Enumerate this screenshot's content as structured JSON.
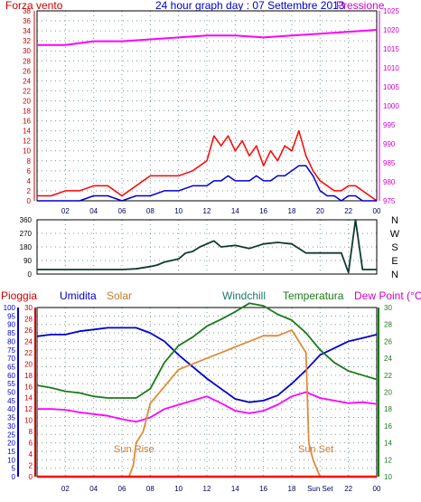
{
  "header": {
    "left_label": "Forza vento",
    "title": "24 hour graph day : 07 Settembre 2013",
    "right_label": "Pressione"
  },
  "bottom_header": {
    "pioggia": "Pioggia",
    "umidita": "Umidita",
    "solar": "Solar",
    "windchill": "Windchill",
    "temperatura": "Temperatura",
    "dewpoint": "Dew Point (°C)"
  },
  "annotations": {
    "sunrise": "Sun Rise",
    "sunset": "Sun Set"
  },
  "colors": {
    "wind_gust": "#ff0000",
    "wind_avg": "#0000cc",
    "pressure": "#ff00ff",
    "direction": "#0f3a30",
    "humidity": "#0000cc",
    "solar": "#e08a3a",
    "temperature": "#1a7a1a",
    "dewpoint": "#ff00ff",
    "rain": "#ff0000",
    "axis_left": "#cc0000",
    "axis_right": "#cc00cc",
    "axis_blue": "#0000cc",
    "axis_green": "#1a7a1a",
    "grid": "#7a9a9a"
  },
  "chart_data": [
    {
      "type": "line",
      "name": "wind-pressure",
      "x_ticks": [
        "02",
        "04",
        "06",
        "08",
        "10",
        "12",
        "14",
        "16",
        "18",
        "20",
        "22",
        "00"
      ],
      "y_left_ticks": [
        "0",
        "2",
        "4",
        "6",
        "8",
        "10",
        "12",
        "14",
        "16",
        "18",
        "20",
        "22",
        "24",
        "26",
        "28",
        "30",
        "32",
        "34",
        "36",
        "38"
      ],
      "y_left_range": [
        0,
        38
      ],
      "y_right_ticks": [
        "975",
        "980",
        "985",
        "990",
        "995",
        "1000",
        "1005",
        "1010",
        "1015",
        "1020",
        "1025"
      ],
      "y_right_range": [
        975,
        1025
      ],
      "x_range": [
        0,
        24
      ],
      "grid": true,
      "series": [
        {
          "key": "gust",
          "color": "#ff0000",
          "x": [
            0,
            1,
            2,
            3,
            4,
            5,
            6,
            7,
            8,
            9,
            10,
            11,
            12,
            12.5,
            13,
            13.5,
            14,
            14.5,
            15,
            15.5,
            16,
            16.5,
            17,
            17.5,
            18,
            18.5,
            19,
            19.5,
            20,
            20.5,
            21,
            21.5,
            22,
            22.5,
            23,
            23.5,
            24
          ],
          "values": [
            1,
            1,
            2,
            2,
            3,
            3,
            1,
            3,
            5,
            5,
            5,
            6,
            8,
            13,
            11,
            13,
            10,
            12,
            9,
            11,
            7,
            10,
            8,
            11,
            10,
            14,
            9,
            6,
            4,
            3,
            2,
            2,
            3,
            3,
            2,
            1,
            0
          ]
        },
        {
          "key": "avg",
          "color": "#0000cc",
          "x": [
            0,
            1,
            2,
            3,
            4,
            5,
            6,
            7,
            8,
            9,
            10,
            11,
            12,
            12.5,
            13,
            13.5,
            14,
            14.5,
            15,
            15.5,
            16,
            16.5,
            17,
            17.5,
            18,
            18.5,
            19,
            19.5,
            20,
            20.5,
            21,
            21.5,
            22,
            22.5,
            23,
            23.5,
            24
          ],
          "values": [
            0,
            0,
            0,
            0,
            1,
            1,
            0,
            1,
            1,
            2,
            2,
            3,
            3,
            4,
            4,
            5,
            4,
            4,
            4,
            5,
            4,
            4,
            5,
            5,
            6,
            7,
            7,
            5,
            2,
            1,
            1,
            0,
            1,
            1,
            0,
            0,
            0
          ]
        },
        {
          "key": "pressure",
          "color": "#ff00ff",
          "axis": "right",
          "x": [
            0,
            2,
            4,
            6,
            8,
            10,
            12,
            14,
            16,
            18,
            20,
            22,
            24
          ],
          "values": [
            1016,
            1016,
            1017,
            1017,
            1017.5,
            1018,
            1018.5,
            1018.5,
            1018,
            1018.5,
            1019,
            1019.5,
            1020
          ]
        }
      ]
    },
    {
      "type": "line",
      "name": "wind-direction",
      "y_ticks": [
        "0",
        "90",
        "180",
        "270",
        "360"
      ],
      "y_range": [
        0,
        360
      ],
      "compass_labels": [
        "N",
        "W",
        "S",
        "E",
        "N"
      ],
      "x_range": [
        0,
        24
      ],
      "series": [
        {
          "key": "direction",
          "color": "#0f3a30",
          "x": [
            0,
            3,
            6,
            7,
            8,
            8.5,
            9,
            10,
            10.5,
            11,
            11.5,
            12,
            12.5,
            13,
            14,
            15,
            16,
            17,
            18,
            19,
            20,
            21,
            21.5,
            22,
            22.5,
            23,
            24
          ],
          "values": [
            30,
            30,
            30,
            35,
            50,
            60,
            80,
            100,
            140,
            150,
            180,
            200,
            220,
            180,
            190,
            170,
            200,
            210,
            200,
            140,
            140,
            140,
            140,
            10,
            360,
            30,
            30
          ]
        }
      ]
    },
    {
      "type": "line",
      "name": "humidity-temperature",
      "x_ticks": [
        "02",
        "04",
        "06",
        "08",
        "10",
        "12",
        "14",
        "16",
        "18",
        "Sun Set",
        "22",
        "00"
      ],
      "y_blue_ticks": [
        "0",
        "5",
        "10",
        "15",
        "20",
        "25",
        "30",
        "35",
        "40",
        "45",
        "50",
        "55",
        "60",
        "65",
        "70",
        "75",
        "80",
        "85",
        "90",
        "95",
        "100"
      ],
      "y_blue_range": [
        0,
        100
      ],
      "y_red_ticks": [
        "0",
        "2",
        "4",
        "6",
        "8",
        "10",
        "12",
        "14",
        "16",
        "18",
        "20",
        "22",
        "24",
        "26",
        "28",
        "30"
      ],
      "y_red_range": [
        0,
        30
      ],
      "y_right_ticks": [
        "10",
        "12",
        "14",
        "16",
        "18",
        "20",
        "22",
        "24",
        "26",
        "28",
        "30"
      ],
      "y_right_range": [
        10,
        30
      ],
      "x_range": [
        0,
        24
      ],
      "grid": true,
      "series": [
        {
          "key": "humidity",
          "color": "#0000cc",
          "axis": "blue",
          "x": [
            0,
            1,
            2,
            3,
            4,
            5,
            6,
            7,
            8,
            9,
            10,
            11,
            12,
            13,
            14,
            15,
            16,
            17,
            18,
            19,
            20,
            21,
            22,
            23,
            24
          ],
          "values": [
            83,
            84,
            84,
            86,
            87,
            88,
            88,
            88,
            85,
            80,
            72,
            65,
            58,
            52,
            46,
            44,
            45,
            48,
            55,
            63,
            72,
            76,
            80,
            82,
            84
          ]
        },
        {
          "key": "temperature",
          "color": "#1a7a1a",
          "axis": "right",
          "x": [
            0,
            1,
            2,
            3,
            4,
            5,
            6,
            7,
            8,
            9,
            10,
            11,
            12,
            13,
            14,
            15,
            16,
            17,
            18,
            19,
            20,
            21,
            22,
            23,
            24
          ],
          "values": [
            20.8,
            20.5,
            20.1,
            19.9,
            19.5,
            19.3,
            19.3,
            19.3,
            20.4,
            23.5,
            25.5,
            26.5,
            27.8,
            28.6,
            29.5,
            30.5,
            30.2,
            29.2,
            28.5,
            27,
            25,
            23.5,
            22.5,
            22,
            21.5
          ]
        },
        {
          "key": "dewpoint",
          "color": "#ff00ff",
          "axis": "right",
          "x": [
            0,
            1,
            2,
            3,
            4,
            5,
            6,
            7,
            8,
            9,
            10,
            11,
            12,
            13,
            14,
            15,
            16,
            17,
            18,
            19,
            20,
            21,
            22,
            23,
            24
          ],
          "values": [
            18,
            18,
            17.9,
            17.6,
            17.4,
            17.2,
            16.8,
            16.5,
            17,
            18,
            18.5,
            19,
            19.5,
            18.7,
            17.8,
            17.5,
            17.8,
            18.5,
            19.5,
            20,
            19.3,
            19,
            18.7,
            18.8,
            18.6
          ]
        },
        {
          "key": "solar",
          "color": "#e08a3a",
          "axis": "red",
          "x": [
            0,
            6.5,
            6.8,
            7,
            7.5,
            8,
            9,
            10,
            11,
            12,
            13,
            14,
            15,
            16,
            17,
            18,
            18.5,
            19,
            19.2,
            19.5,
            20,
            21,
            24
          ],
          "values": [
            0,
            0,
            2,
            6,
            8,
            13,
            16,
            19,
            20,
            21,
            22,
            23,
            24,
            25,
            25,
            26,
            24,
            22,
            6,
            3,
            0,
            0,
            0
          ]
        },
        {
          "key": "rain",
          "color": "#ff0000",
          "axis": "red",
          "x": [
            0,
            24
          ],
          "values": [
            0,
            0
          ]
        }
      ]
    }
  ]
}
